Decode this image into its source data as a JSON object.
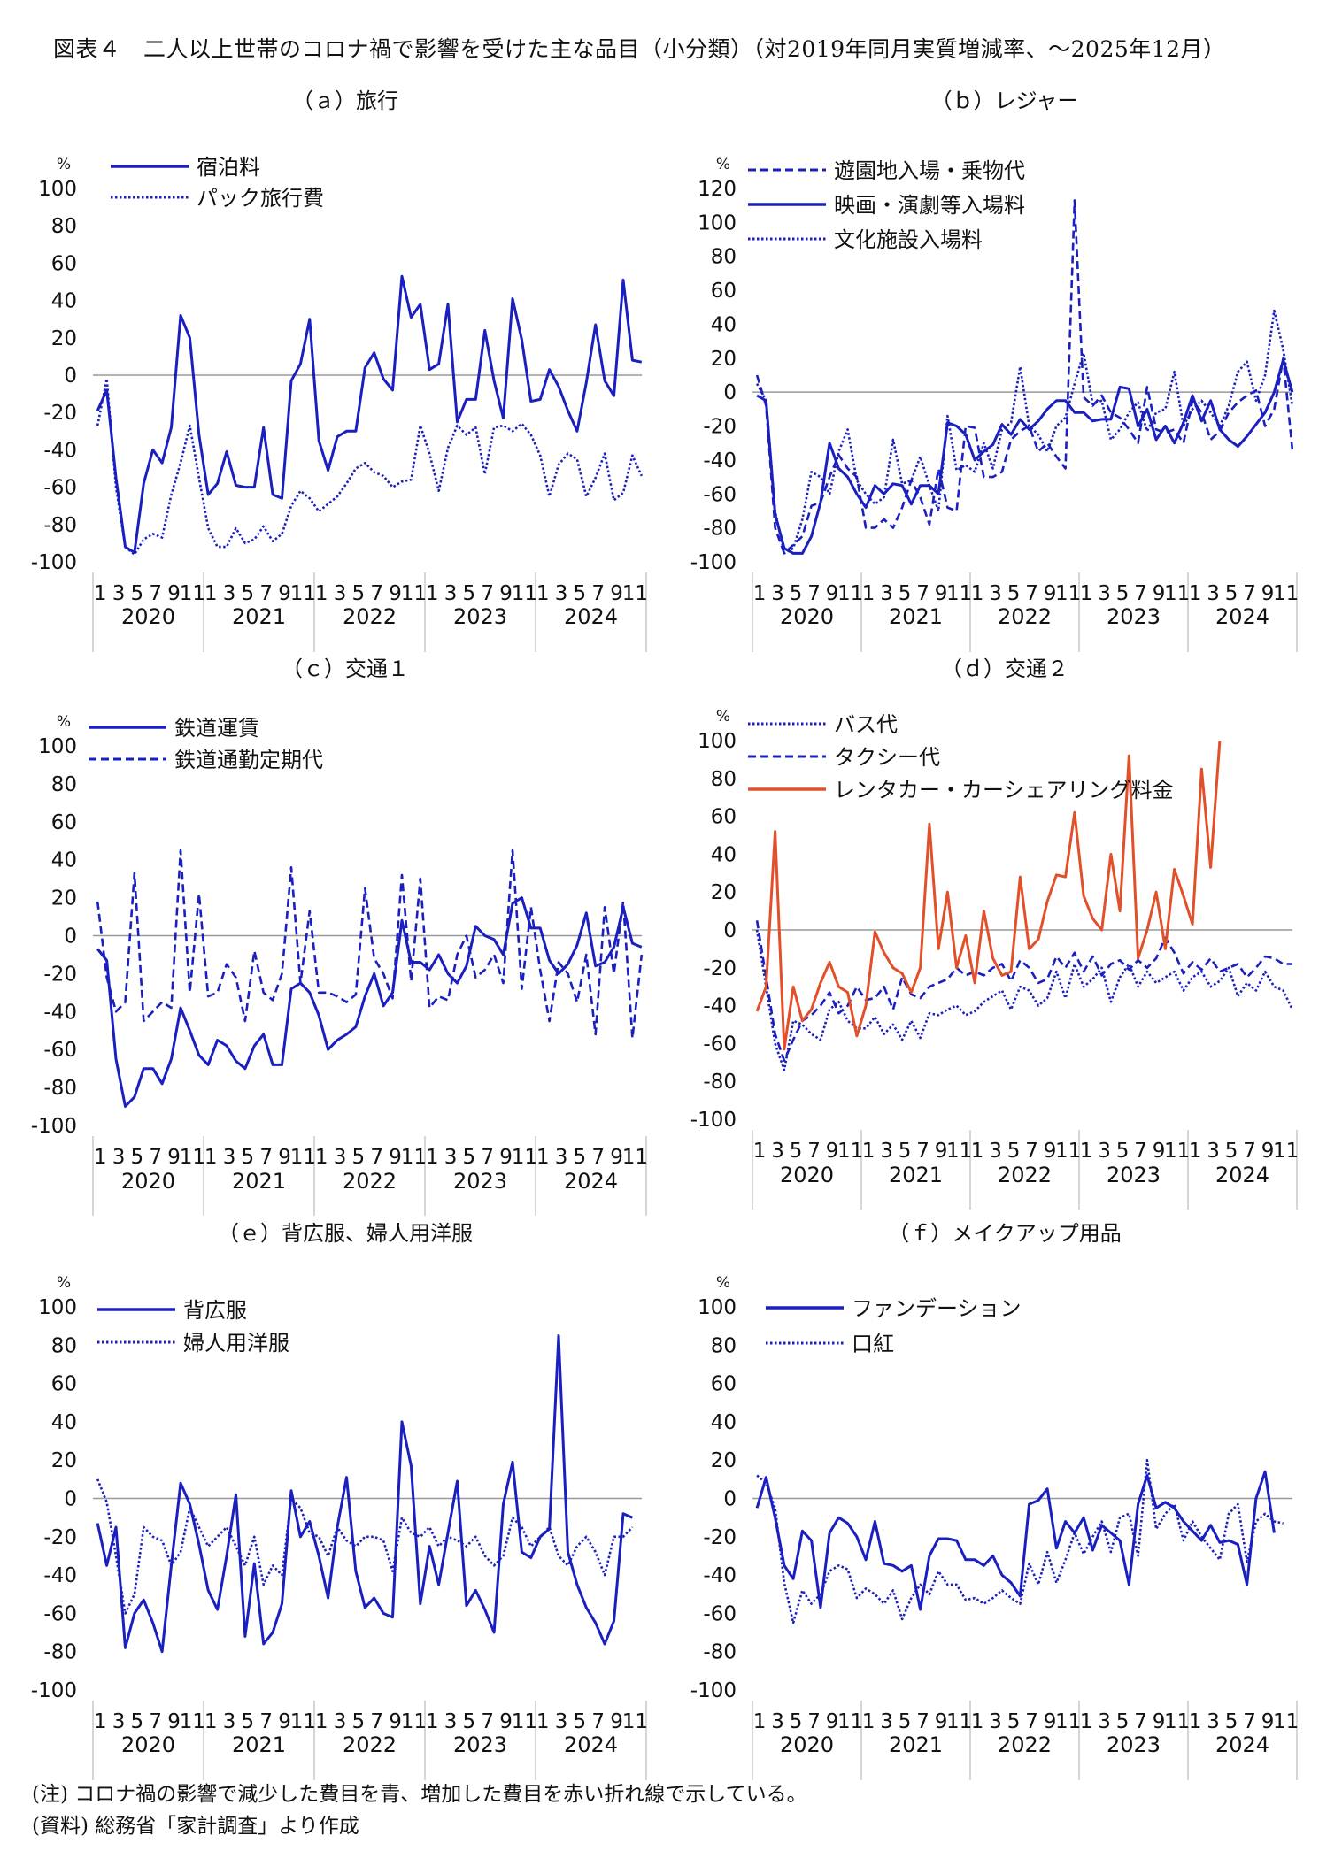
{
  "title": "図表４　二人以上世帯のコロナ禍で影響を受けた主な品目（小分類）（対2019年同月実質増減率、〜2025年12月）",
  "notes": {
    "note": "(注)  コロナ禍の影響で減少した費目を青、増加した費目を赤い折れ線で示している。",
    "source": "(資料)  総務省「家計調査」より作成"
  },
  "colors": {
    "blue": "#1a1fbf",
    "red": "#e2502a"
  },
  "chart_data": [
    {
      "type": "line",
      "panel_title": "（ａ）旅行",
      "unit": "%",
      "ylim": [
        -100,
        100
      ],
      "yticks": [
        100,
        80,
        60,
        40,
        20,
        0,
        -20,
        -40,
        -60,
        -80,
        -100
      ],
      "month_ticks": [
        "1",
        "3",
        "5",
        "7",
        "9",
        "11"
      ],
      "years": [
        "2020",
        "2021",
        "2022",
        "2023",
        "2024"
      ],
      "series": [
        {
          "name": "宿泊料",
          "style": "solid",
          "color": "#1a1fbf",
          "values": [
            -19,
            -8,
            -55,
            -92,
            -95,
            -58,
            -40,
            -47,
            -28,
            32,
            20,
            -32,
            -64,
            -58,
            -41,
            -59,
            -60,
            -60,
            -28,
            -64,
            -66,
            -3,
            6,
            30,
            -35,
            -51,
            -33,
            -30,
            -30,
            4,
            12,
            -2,
            -8,
            53,
            31,
            38,
            3,
            6,
            38,
            -25,
            -13,
            -13,
            24,
            -3,
            -23,
            41,
            19,
            -14,
            -13,
            3,
            -6,
            -19,
            -30,
            -4,
            27,
            -3,
            -11,
            51,
            8,
            7
          ]
        },
        {
          "name": "パック旅行費",
          "style": "dotted",
          "color": "#1a1fbf",
          "values": [
            -27,
            -2,
            -60,
            -92,
            -96,
            -88,
            -85,
            -87,
            -64,
            -47,
            -27,
            -55,
            -82,
            -92,
            -92,
            -82,
            -90,
            -88,
            -81,
            -89,
            -85,
            -70,
            -62,
            -66,
            -73,
            -69,
            -65,
            -58,
            -50,
            -47,
            -52,
            -54,
            -60,
            -57,
            -56,
            -27,
            -42,
            -62,
            -39,
            -27,
            -32,
            -28,
            -53,
            -28,
            -27,
            -30,
            -26,
            -32,
            -43,
            -65,
            -48,
            -42,
            -45,
            -65,
            -55,
            -42,
            -67,
            -63,
            -43,
            -54
          ]
        }
      ]
    },
    {
      "type": "line",
      "panel_title": "（ｂ）レジャー",
      "unit": "%",
      "ylim": [
        -100,
        120
      ],
      "yticks": [
        120,
        100,
        80,
        60,
        40,
        20,
        0,
        -20,
        -40,
        -60,
        -80,
        -100
      ],
      "month_ticks": [
        "1",
        "3",
        "5",
        "7",
        "9",
        "11"
      ],
      "years": [
        "2020",
        "2021",
        "2022",
        "2023",
        "2024"
      ],
      "series": [
        {
          "name": "遊園地入場・乗物代",
          "style": "dashed",
          "color": "#1a1fbf",
          "values": [
            10,
            -8,
            -80,
            -95,
            -90,
            -85,
            -67,
            -65,
            -50,
            -37,
            -45,
            -50,
            -80,
            -80,
            -75,
            -80,
            -68,
            -52,
            -62,
            -78,
            -45,
            -68,
            -70,
            -20,
            -21,
            -50,
            -50,
            -47,
            -28,
            -23,
            -20,
            -35,
            -30,
            -38,
            -45,
            113,
            -3,
            -8,
            -2,
            -12,
            -15,
            -22,
            -30,
            3,
            -22,
            -24,
            -22,
            -30,
            -5,
            -12,
            -28,
            -23,
            -12,
            -6,
            -2,
            1,
            -20,
            -10,
            20,
            -34
          ]
        },
        {
          "name": "映画・演劇等入場料",
          "style": "solid",
          "color": "#1a1fbf",
          "values": [
            -2,
            -5,
            -72,
            -92,
            -95,
            -95,
            -85,
            -65,
            -30,
            -45,
            -50,
            -60,
            -68,
            -55,
            -60,
            -54,
            -55,
            -66,
            -55,
            -55,
            -60,
            -18,
            -20,
            -25,
            -40,
            -35,
            -31,
            -19,
            -25,
            -16,
            -22,
            -17,
            -10,
            -5,
            -5,
            -12,
            -12,
            -17,
            -16,
            -16,
            3,
            2,
            -20,
            -10,
            -28,
            -20,
            -30,
            -18,
            -2,
            -17,
            -5,
            -22,
            -28,
            -32,
            -26,
            -19,
            -12,
            0,
            19,
            0
          ]
        },
        {
          "name": "文化施設入場料",
          "style": "dotted",
          "color": "#1a1fbf",
          "values": [
            5,
            -5,
            -70,
            -95,
            -92,
            -75,
            -47,
            -50,
            -60,
            -35,
            -22,
            -52,
            -60,
            -66,
            -62,
            -28,
            -54,
            -52,
            -38,
            -55,
            -70,
            -14,
            -46,
            -43,
            -47,
            -30,
            -45,
            -22,
            -18,
            15,
            -20,
            -25,
            -35,
            -20,
            -15,
            5,
            23,
            -7,
            -5,
            -28,
            -22,
            -12,
            -6,
            -23,
            -12,
            -10,
            12,
            -20,
            -10,
            -5,
            -12,
            -20,
            -8,
            12,
            18,
            -5,
            10,
            48,
            25,
            -8
          ]
        }
      ]
    },
    {
      "type": "line",
      "panel_title": "（ｃ）交通１",
      "unit": "%",
      "ylim": [
        -100,
        100
      ],
      "yticks": [
        100,
        80,
        60,
        40,
        20,
        0,
        -20,
        -40,
        -60,
        -80,
        -100
      ],
      "month_ticks": [
        "1",
        "3",
        "5",
        "7",
        "9",
        "11"
      ],
      "years": [
        "2020",
        "2021",
        "2022",
        "2023",
        "2024"
      ],
      "series": [
        {
          "name": "鉄道運賃",
          "style": "solid",
          "color": "#1a1fbf",
          "values": [
            -7,
            -13,
            -65,
            -90,
            -85,
            -70,
            -70,
            -78,
            -65,
            -38,
            -50,
            -63,
            -68,
            -55,
            -58,
            -66,
            -70,
            -58,
            -52,
            -68,
            -68,
            -28,
            -25,
            -30,
            -42,
            -60,
            -55,
            -52,
            -48,
            -32,
            -20,
            -37,
            -30,
            8,
            -14,
            -14,
            -18,
            -10,
            -20,
            -25,
            -16,
            5,
            0,
            -2,
            -10,
            17,
            20,
            4,
            4,
            -13,
            -20,
            -15,
            -5,
            12,
            -16,
            -14,
            -6,
            15,
            -4,
            -6
          ]
        },
        {
          "name": "鉄道通勤定期代",
          "style": "dashed",
          "color": "#1a1fbf",
          "values": [
            18,
            -22,
            -40,
            -35,
            33,
            -45,
            -40,
            -35,
            -38,
            45,
            -30,
            22,
            -32,
            -30,
            -15,
            -22,
            -45,
            -8,
            -30,
            -34,
            -20,
            36,
            -25,
            13,
            -30,
            -30,
            -32,
            -35,
            -31,
            25,
            -12,
            -20,
            -33,
            32,
            -24,
            30,
            -38,
            -32,
            -34,
            -10,
            0,
            -22,
            -18,
            -10,
            -25,
            45,
            -28,
            15,
            -18,
            -45,
            -14,
            -20,
            -35,
            -10,
            -52,
            15,
            -20,
            18,
            -54,
            -10
          ]
        }
      ]
    },
    {
      "type": "line",
      "panel_title": "（ｄ）交通２",
      "unit": "%",
      "ylim": [
        -100,
        100
      ],
      "yticks": [
        100,
        80,
        60,
        40,
        20,
        0,
        -20,
        -40,
        -60,
        -80,
        -100
      ],
      "month_ticks": [
        "1",
        "3",
        "5",
        "7",
        "9",
        "11"
      ],
      "years": [
        "2020",
        "2021",
        "2022",
        "2023",
        "2024"
      ],
      "series": [
        {
          "name": "バス代",
          "style": "dotted",
          "color": "#1a1fbf",
          "values": [
            0,
            -30,
            -60,
            -74,
            -48,
            -50,
            -55,
            -58,
            -42,
            -38,
            -48,
            -52,
            -52,
            -46,
            -55,
            -50,
            -58,
            -48,
            -57,
            -44,
            -45,
            -42,
            -40,
            -45,
            -43,
            -38,
            -35,
            -32,
            -42,
            -30,
            -32,
            -40,
            -36,
            -22,
            -36,
            -18,
            -30,
            -26,
            -20,
            -38,
            -25,
            -18,
            -30,
            -22,
            -28,
            -25,
            -22,
            -32,
            -25,
            -22,
            -30,
            -27,
            -20,
            -35,
            -28,
            -32,
            -22,
            -30,
            -32,
            -42
          ]
        },
        {
          "name": "タクシー代",
          "style": "dashed",
          "color": "#1a1fbf",
          "values": [
            5,
            -25,
            -55,
            -69,
            -58,
            -48,
            -45,
            -40,
            -33,
            -44,
            -40,
            -30,
            -37,
            -36,
            -30,
            -42,
            -25,
            -34,
            -36,
            -30,
            -28,
            -26,
            -20,
            -24,
            -22,
            -24,
            -20,
            -18,
            -27,
            -16,
            -20,
            -28,
            -26,
            -14,
            -20,
            -12,
            -22,
            -14,
            -24,
            -18,
            -16,
            -21,
            -16,
            -20,
            -15,
            -4,
            -12,
            -23,
            -17,
            -21,
            -15,
            -22,
            -20,
            -18,
            -25,
            -20,
            -14,
            -15,
            -18,
            -18
          ]
        },
        {
          "name": "レンタカー・カーシェアリング料金",
          "style": "solid",
          "color": "#e2502a",
          "values": [
            -43,
            -30,
            52,
            -63,
            -30,
            -48,
            -42,
            -28,
            -17,
            -30,
            -33,
            -56,
            -40,
            -1,
            -12,
            -20,
            -23,
            -33,
            -20,
            56,
            -10,
            20,
            -20,
            -3,
            -28,
            10,
            -15,
            -24,
            -22,
            28,
            -10,
            -5,
            15,
            29,
            28,
            62,
            18,
            6,
            0,
            40,
            10,
            92,
            -15,
            0,
            20,
            -10,
            32,
            18,
            3,
            85,
            33,
            100
          ]
        }
      ]
    },
    {
      "type": "line",
      "panel_title": "（ｅ）背広服、婦人用洋服",
      "unit": "%",
      "ylim": [
        -100,
        100
      ],
      "yticks": [
        100,
        80,
        60,
        40,
        20,
        0,
        -20,
        -40,
        -60,
        -80,
        -100
      ],
      "month_ticks": [
        "1",
        "3",
        "5",
        "7",
        "9",
        "11"
      ],
      "years": [
        "2020",
        "2021",
        "2022",
        "2023",
        "2024"
      ],
      "series": [
        {
          "name": "背広服",
          "style": "solid",
          "color": "#1a1fbf",
          "values": [
            -13,
            -35,
            -15,
            -78,
            -60,
            -53,
            -65,
            -80,
            -35,
            8,
            -3,
            -24,
            -48,
            -58,
            -30,
            2,
            -72,
            -34,
            -76,
            -70,
            -55,
            4,
            -20,
            -12,
            -30,
            -52,
            -15,
            11,
            -38,
            -57,
            -52,
            -60,
            -62,
            40,
            17,
            -55,
            -25,
            -45,
            -18,
            9,
            -56,
            -48,
            -58,
            -70,
            -3,
            19,
            -28,
            -31,
            -20,
            -16,
            85,
            -28,
            -45,
            -57,
            -65,
            -76,
            -64,
            -8,
            -10
          ]
        },
        {
          "name": "婦人用洋服",
          "style": "dotted",
          "color": "#1a1fbf",
          "values": [
            10,
            -2,
            -30,
            -60,
            -50,
            -15,
            -20,
            -22,
            -35,
            -28,
            -5,
            -15,
            -25,
            -20,
            -15,
            -25,
            -35,
            -20,
            -45,
            -35,
            -40,
            0,
            -5,
            -18,
            -20,
            -30,
            -15,
            -22,
            -25,
            -20,
            -20,
            -22,
            -38,
            -10,
            -18,
            -20,
            -15,
            -25,
            -20,
            -22,
            -25,
            -20,
            -30,
            -35,
            -30,
            -10,
            -15,
            -25,
            -20,
            -15,
            -30,
            -35,
            -25,
            -20,
            -28,
            -40,
            -20,
            -20,
            -15
          ]
        }
      ]
    },
    {
      "type": "line",
      "panel_title": "（ｆ）メイクアップ用品",
      "unit": "%",
      "ylim": [
        -100,
        100
      ],
      "yticks": [
        100,
        80,
        60,
        40,
        20,
        0,
        -20,
        -40,
        -60,
        -80,
        -100
      ],
      "month_ticks": [
        "1",
        "3",
        "5",
        "7",
        "9",
        "11"
      ],
      "years": [
        "2020",
        "2021",
        "2022",
        "2023",
        "2024"
      ],
      "series": [
        {
          "name": "ファンデーション",
          "style": "solid",
          "color": "#1a1fbf",
          "values": [
            -5,
            11,
            -10,
            -35,
            -42,
            -17,
            -22,
            -57,
            -18,
            -10,
            -13,
            -20,
            -32,
            -12,
            -34,
            -35,
            -38,
            -35,
            -58,
            -30,
            -21,
            -21,
            -22,
            -32,
            -32,
            -35,
            -30,
            -40,
            -44,
            -51,
            -3,
            -1,
            5,
            -26,
            -12,
            -18,
            -10,
            -27,
            -14,
            -18,
            -22,
            -45,
            -3,
            12,
            -5,
            -2,
            -5,
            -12,
            -17,
            -22,
            -14,
            -23,
            -22,
            -24,
            -45,
            0,
            14,
            -18
          ]
        },
        {
          "name": "口紅",
          "style": "dotted",
          "color": "#1a1fbf",
          "values": [
            12,
            8,
            -5,
            -44,
            -65,
            -48,
            -55,
            -50,
            -38,
            -35,
            -37,
            -52,
            -47,
            -50,
            -55,
            -48,
            -63,
            -52,
            -45,
            -50,
            -38,
            -45,
            -45,
            -53,
            -52,
            -55,
            -52,
            -48,
            -52,
            -55,
            -34,
            -45,
            -28,
            -44,
            -32,
            -18,
            -29,
            -20,
            -12,
            -28,
            -10,
            -8,
            -30,
            20,
            -16,
            -8,
            -3,
            -22,
            -12,
            -20,
            -26,
            -32,
            -8,
            -3,
            -33,
            -12,
            -8,
            -12,
            -13
          ]
        }
      ]
    }
  ]
}
